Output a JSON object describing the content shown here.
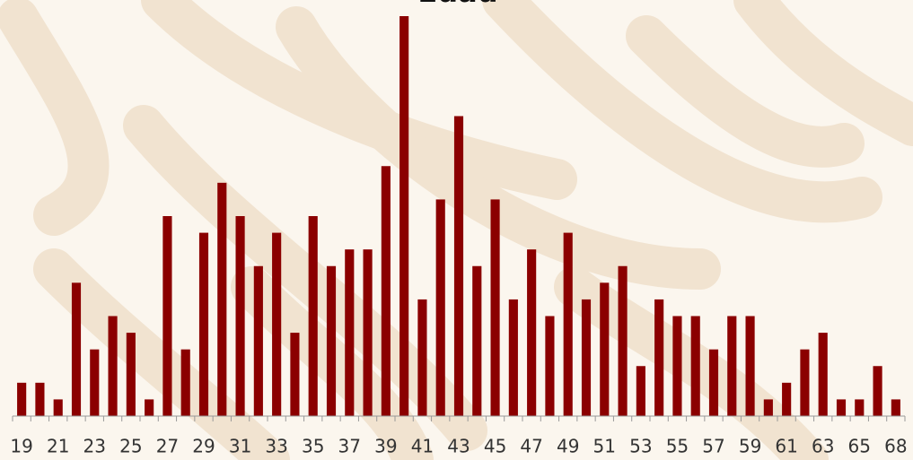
{
  "chart_data": {
    "type": "bar",
    "title": "Edad",
    "categories": [
      "19",
      null,
      "21",
      null,
      "23",
      null,
      "25",
      null,
      "27",
      null,
      "29",
      null,
      "31",
      null,
      "33",
      null,
      "35",
      null,
      "37",
      null,
      "39",
      null,
      "41",
      null,
      "43",
      null,
      "45",
      null,
      "47",
      null,
      "49",
      null,
      "51",
      null,
      "53",
      null,
      "55",
      null,
      "57",
      null,
      "59",
      null,
      "61",
      null,
      "63",
      null,
      "65",
      null,
      "68"
    ],
    "values": [
      2,
      2,
      1,
      8,
      4,
      6,
      5,
      1,
      12,
      4,
      11,
      14,
      12,
      9,
      11,
      5,
      12,
      9,
      10,
      10,
      15,
      24,
      7,
      13,
      18,
      9,
      13,
      7,
      10,
      6,
      11,
      7,
      8,
      9,
      3,
      7,
      6,
      6,
      4,
      6,
      6,
      1,
      2,
      4,
      5,
      1,
      1,
      3,
      1
    ],
    "color": "#8b0000",
    "ylim": [
      0,
      24
    ]
  }
}
